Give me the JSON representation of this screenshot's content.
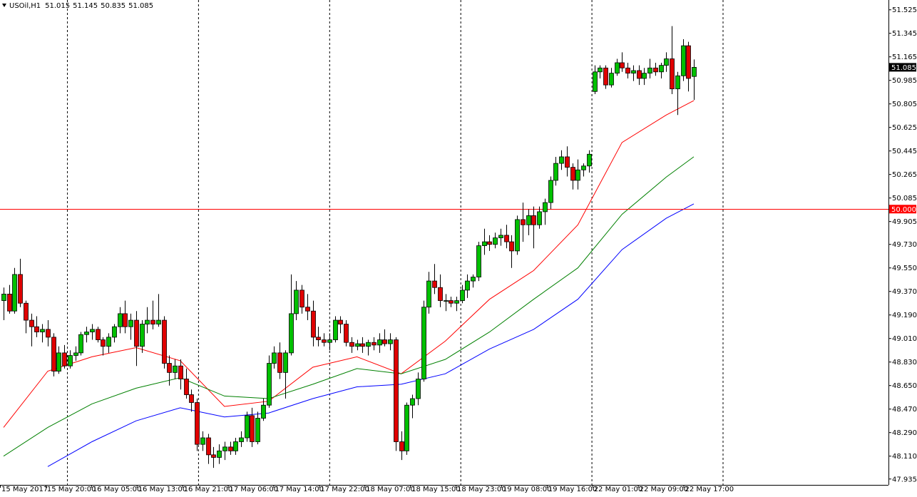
{
  "chart_data": {
    "type": "candlestick",
    "title": "USOil,H1",
    "last_bar": {
      "open": 51.015,
      "high": 51.145,
      "low": 50.835,
      "close": 51.085
    },
    "ylim": [
      47.89,
      51.6
    ],
    "yticks": [
      51.525,
      51.345,
      51.165,
      50.985,
      50.805,
      50.625,
      50.445,
      50.265,
      50.085,
      49.905,
      {
        "value": 49.73,
        "label": "49.730"
      },
      {
        "value": 49.55,
        "label": "49.550"
      },
      {
        "value": 49.37,
        "label": "49.370"
      },
      {
        "value": 49.19,
        "label": "49.190"
      },
      {
        "value": 49.01,
        "label": "49.010"
      },
      {
        "value": 48.83,
        "label": "48.830"
      },
      {
        "value": 48.65,
        "label": "48.650"
      },
      {
        "value": 48.47,
        "label": "48.470"
      },
      {
        "value": 48.29,
        "label": "48.290"
      },
      {
        "value": 48.11,
        "label": "48.110"
      },
      47.935
    ],
    "hline": {
      "value": 50,
      "label": "50.000",
      "color": "#ff0000"
    },
    "up_color": "#00c000",
    "down_color": "#e00000",
    "x_labels": [
      "15 May 2017",
      "15 May 20:00",
      "16 May 05:00",
      "16 May 13:00",
      "16 May 21:00",
      "17 May 06:00",
      "17 May 14:00",
      "17 May 22:00",
      "18 May 07:00",
      "18 May 15:00",
      "18 May 23:00",
      "19 May 08:00",
      "19 May 16:00",
      "22 May 01:00",
      "22 May 09:00",
      "22 May 17:00"
    ],
    "ohlc": [
      [
        49.3,
        49.4,
        49.15,
        49.35
      ],
      [
        49.35,
        49.42,
        49.2,
        49.22
      ],
      [
        49.22,
        49.55,
        49.2,
        49.5
      ],
      [
        49.5,
        49.62,
        49.25,
        49.28
      ],
      [
        49.28,
        49.3,
        49.05,
        49.15
      ],
      [
        49.15,
        49.2,
        48.95,
        49.1
      ],
      [
        49.1,
        49.18,
        49.02,
        49.06
      ],
      [
        49.06,
        49.12,
        48.98,
        49.08
      ],
      [
        49.08,
        49.15,
        48.95,
        49.02
      ],
      [
        49.02,
        49.05,
        48.72,
        48.76
      ],
      [
        48.76,
        48.95,
        48.74,
        48.9
      ],
      [
        48.9,
        48.96,
        48.78,
        48.8
      ],
      [
        48.8,
        48.92,
        48.78,
        48.88
      ],
      [
        48.88,
        48.95,
        48.84,
        48.9
      ],
      [
        48.9,
        49.06,
        48.88,
        49.04
      ],
      [
        49.04,
        49.1,
        48.98,
        49.06
      ],
      [
        49.06,
        49.12,
        49.0,
        49.08
      ],
      [
        49.08,
        49.1,
        48.98,
        49.0
      ],
      [
        49.0,
        49.02,
        48.88,
        48.95
      ],
      [
        48.95,
        49.05,
        48.9,
        49.02
      ],
      [
        49.02,
        49.12,
        48.98,
        49.1
      ],
      [
        49.1,
        49.25,
        49.05,
        49.2
      ],
      [
        49.2,
        49.3,
        49.05,
        49.1
      ],
      [
        49.1,
        49.2,
        49.0,
        49.15
      ],
      [
        49.15,
        49.22,
        48.8,
        48.95
      ],
      [
        48.95,
        49.15,
        48.9,
        49.12
      ],
      [
        49.12,
        49.25,
        49.05,
        49.15
      ],
      [
        49.15,
        49.3,
        49.08,
        49.12
      ],
      [
        49.12,
        49.35,
        49.1,
        49.15
      ],
      [
        49.15,
        49.18,
        48.78,
        48.82
      ],
      [
        48.82,
        48.88,
        48.65,
        48.75
      ],
      [
        48.75,
        48.85,
        48.7,
        48.8
      ],
      [
        48.8,
        48.85,
        48.62,
        48.7
      ],
      [
        48.7,
        48.78,
        48.55,
        48.58
      ],
      [
        48.58,
        48.62,
        48.45,
        48.52
      ],
      [
        48.52,
        48.55,
        48.15,
        48.2
      ],
      [
        48.2,
        48.3,
        48.15,
        48.25
      ],
      [
        48.25,
        48.28,
        48.05,
        48.12
      ],
      [
        48.12,
        48.18,
        48.02,
        48.1
      ],
      [
        48.1,
        48.2,
        48.05,
        48.15
      ],
      [
        48.15,
        48.22,
        48.08,
        48.18
      ],
      [
        48.18,
        48.22,
        48.12,
        48.15
      ],
      [
        48.15,
        48.25,
        48.12,
        48.22
      ],
      [
        48.22,
        48.3,
        48.18,
        48.25
      ],
      [
        48.25,
        48.45,
        48.22,
        48.42
      ],
      [
        48.42,
        48.48,
        48.18,
        48.22
      ],
      [
        48.22,
        48.45,
        48.2,
        48.4
      ],
      [
        48.4,
        48.55,
        48.38,
        48.5
      ],
      [
        48.5,
        48.88,
        48.48,
        48.82
      ],
      [
        48.82,
        48.95,
        48.78,
        48.9
      ],
      [
        48.9,
        48.98,
        48.7,
        48.75
      ],
      [
        48.75,
        48.92,
        48.55,
        48.9
      ],
      [
        48.9,
        49.5,
        48.88,
        49.2
      ],
      [
        49.2,
        49.45,
        49.15,
        49.38
      ],
      [
        49.38,
        49.42,
        49.2,
        49.25
      ],
      [
        49.25,
        49.35,
        49.15,
        49.22
      ],
      [
        49.22,
        49.3,
        48.95,
        49.02
      ],
      [
        49.02,
        49.1,
        48.95,
        49.0
      ],
      [
        49.0,
        49.05,
        48.95,
        48.98
      ],
      [
        48.98,
        49.05,
        48.92,
        49.0
      ],
      [
        49.0,
        49.18,
        48.98,
        49.15
      ],
      [
        49.15,
        49.18,
        49.05,
        49.12
      ],
      [
        49.12,
        49.15,
        48.95,
        48.98
      ],
      [
        48.98,
        49.02,
        48.9,
        48.95
      ],
      [
        48.95,
        49.0,
        48.92,
        48.97
      ],
      [
        48.97,
        49.02,
        48.9,
        48.95
      ],
      [
        48.95,
        49.0,
        48.88,
        48.98
      ],
      [
        48.98,
        49.02,
        48.92,
        48.96
      ],
      [
        48.96,
        49.05,
        48.9,
        49.0
      ],
      [
        49.0,
        49.08,
        48.95,
        48.97
      ],
      [
        48.97,
        49.05,
        48.92,
        49.0
      ],
      [
        49.0,
        49.02,
        48.15,
        48.22
      ],
      [
        48.22,
        48.3,
        48.08,
        48.15
      ],
      [
        48.15,
        48.52,
        48.12,
        48.5
      ],
      [
        48.5,
        48.58,
        48.4,
        48.55
      ],
      [
        48.55,
        48.75,
        48.5,
        48.7
      ],
      [
        48.7,
        49.3,
        48.68,
        49.25
      ],
      [
        49.25,
        49.52,
        49.2,
        49.45
      ],
      [
        49.45,
        49.58,
        49.35,
        49.4
      ],
      [
        49.4,
        49.5,
        49.25,
        49.3
      ],
      [
        49.3,
        49.35,
        49.22,
        49.3
      ],
      [
        49.3,
        49.33,
        49.25,
        49.28
      ],
      [
        49.28,
        49.33,
        49.22,
        49.3
      ],
      [
        49.3,
        49.42,
        49.28,
        49.38
      ],
      [
        49.38,
        49.5,
        49.32,
        49.45
      ],
      [
        49.45,
        49.5,
        49.4,
        49.48
      ],
      [
        49.48,
        49.75,
        49.45,
        49.72
      ],
      [
        49.72,
        49.85,
        49.65,
        49.75
      ],
      [
        49.75,
        49.8,
        49.68,
        49.73
      ],
      [
        49.73,
        49.82,
        49.7,
        49.78
      ],
      [
        49.78,
        49.85,
        49.72,
        49.8
      ],
      [
        49.8,
        49.88,
        49.7,
        49.75
      ],
      [
        49.75,
        49.8,
        49.55,
        49.68
      ],
      [
        49.68,
        49.95,
        49.65,
        49.92
      ],
      [
        49.92,
        50.05,
        49.75,
        49.88
      ],
      [
        49.88,
        50.0,
        49.8,
        49.95
      ],
      [
        49.95,
        50.02,
        49.7,
        49.88
      ],
      [
        49.88,
        50.02,
        49.85,
        49.98
      ],
      [
        49.98,
        50.08,
        49.88,
        50.05
      ],
      [
        50.05,
        50.25,
        50.0,
        50.22
      ],
      [
        50.22,
        50.4,
        50.18,
        50.35
      ],
      [
        50.35,
        50.45,
        50.3,
        50.4
      ],
      [
        50.4,
        50.48,
        50.25,
        50.32
      ],
      [
        50.32,
        50.35,
        50.15,
        50.22
      ],
      [
        50.22,
        50.38,
        50.15,
        50.3
      ],
      [
        50.3,
        50.35,
        50.25,
        50.33
      ],
      [
        50.33,
        50.45,
        50.28,
        50.42
      ],
      [
        50.9,
        51.1,
        50.88,
        51.05
      ],
      [
        51.05,
        51.1,
        51.0,
        51.08
      ],
      [
        51.08,
        51.1,
        50.92,
        50.95
      ],
      [
        50.95,
        51.08,
        50.93,
        51.04
      ],
      [
        51.04,
        51.15,
        51.02,
        51.12
      ],
      [
        51.12,
        51.2,
        51.05,
        51.08
      ],
      [
        51.08,
        51.12,
        51.0,
        51.04
      ],
      [
        51.04,
        51.1,
        50.98,
        51.06
      ],
      [
        51.06,
        51.1,
        50.95,
        51.0
      ],
      [
        51.0,
        51.08,
        50.95,
        51.04
      ],
      [
        51.04,
        51.15,
        51.0,
        51.08
      ],
      [
        51.08,
        51.12,
        51.02,
        51.05
      ],
      [
        51.05,
        51.12,
        51.0,
        51.1
      ],
      [
        51.1,
        51.2,
        51.05,
        51.15
      ],
      [
        51.15,
        51.4,
        50.88,
        50.92
      ],
      [
        50.92,
        51.05,
        50.72,
        51.02
      ],
      [
        51.02,
        51.3,
        50.98,
        51.25
      ],
      [
        51.25,
        51.28,
        50.9,
        51.0
      ],
      [
        51.015,
        51.145,
        50.835,
        51.085
      ]
    ],
    "ma_x": [
      0,
      8,
      16,
      24,
      32,
      40,
      48,
      56,
      64,
      72,
      80,
      88,
      96,
      104,
      112,
      120,
      125
    ],
    "ma": [
      {
        "color": "#ff0000",
        "values": [
          48.33,
          48.76,
          48.87,
          48.94,
          48.84,
          48.49,
          48.53,
          48.79,
          48.87,
          48.74,
          48.99,
          49.31,
          49.53,
          49.88,
          50.51,
          50.72,
          50.83
        ]
      },
      {
        "color": "#008000",
        "values": [
          48.11,
          48.33,
          48.51,
          48.63,
          48.71,
          48.57,
          48.55,
          48.66,
          48.78,
          48.74,
          48.85,
          49.06,
          49.31,
          49.55,
          49.96,
          50.245,
          50.4
        ]
      },
      {
        "color": "#0000ff",
        "values": [
          null,
          48.03,
          48.22,
          48.38,
          48.48,
          48.41,
          48.44,
          48.55,
          48.64,
          48.66,
          48.74,
          48.93,
          49.08,
          49.31,
          49.69,
          49.93,
          50.04
        ]
      }
    ]
  }
}
